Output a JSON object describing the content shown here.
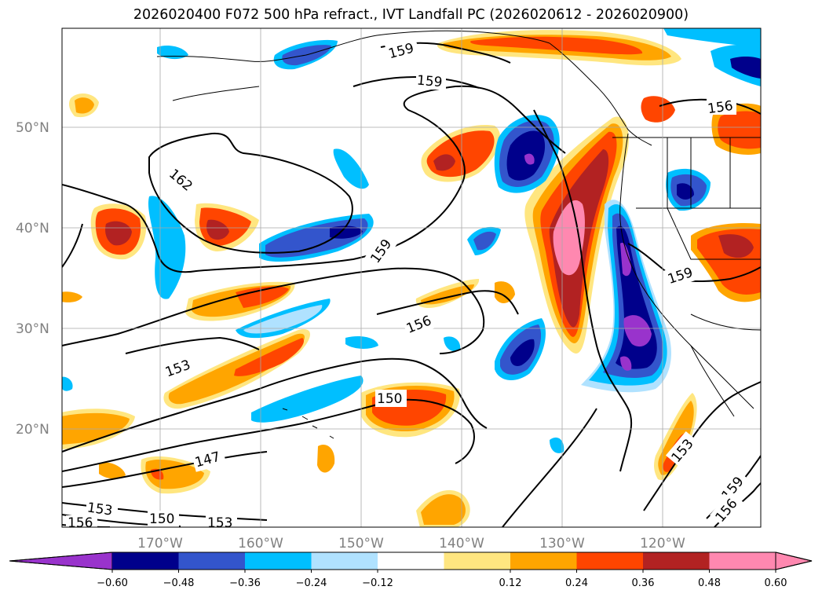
{
  "title": "2026020400 F072 500 hPa refract., IVT Landfall PC (2026020612 - 2026020900)",
  "map": {
    "lat_ticks": [
      "20°N",
      "30°N",
      "40°N",
      "50°N"
    ],
    "lon_ticks": [
      "170°W",
      "160°W",
      "150°W",
      "140°W",
      "130°W",
      "120°W"
    ],
    "contour_labels": [
      "159",
      "159",
      "156",
      "162",
      "159",
      "159",
      "156",
      "153",
      "150",
      "147",
      "153",
      "150",
      "153",
      "156",
      "153",
      "159",
      "156"
    ]
  },
  "colorbar": {
    "tick_labels": [
      "−0.60",
      "−0.48",
      "−0.36",
      "−0.24",
      "−0.12",
      "0.12",
      "0.24",
      "0.36",
      "0.48",
      "0.60"
    ],
    "colors": [
      "#9933cc",
      "#00008b",
      "#3355cc",
      "#00bfff",
      "#b0e2ff",
      "#ffffff",
      "#ffe680",
      "#ffa500",
      "#ff4500",
      "#b22222",
      "#ff88b0",
      "#ff88b0"
    ]
  }
}
